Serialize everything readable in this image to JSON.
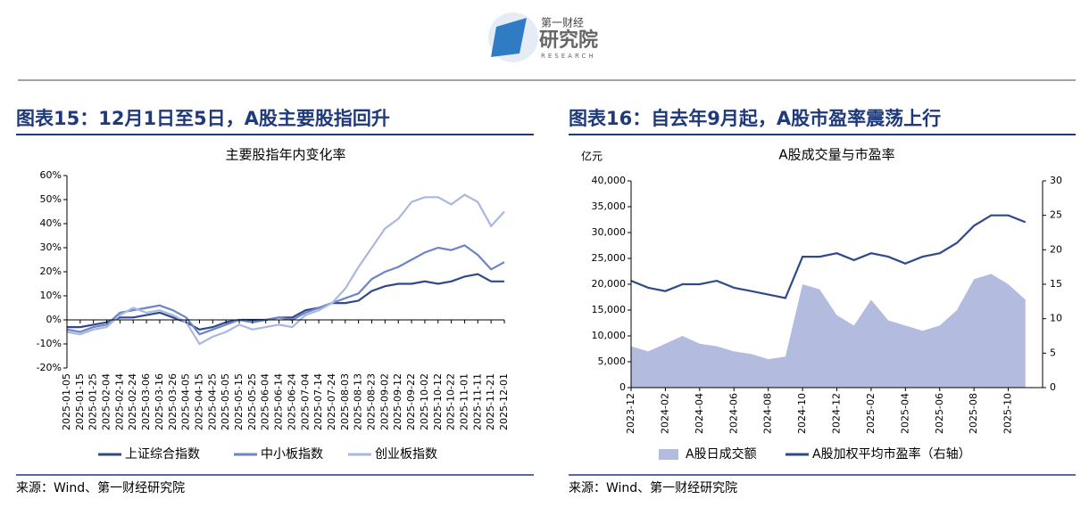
{
  "header": {
    "logo_small": "第一财经",
    "logo_large": "研究院",
    "logo_sub": "RESEARCH"
  },
  "chart_data": [
    {
      "type": "line",
      "figure_title": "图表15：12月1日至5日，A股主要股指回升",
      "title": "主要股指年内变化率",
      "source": "来源：Wind、第一财经研究院",
      "categories": [
        "2025-01-05",
        "2025-01-15",
        "2025-01-25",
        "2025-02-04",
        "2025-02-14",
        "2025-02-24",
        "2025-03-06",
        "2025-03-16",
        "2025-03-26",
        "2025-04-05",
        "2025-04-15",
        "2025-04-25",
        "2025-05-05",
        "2025-05-15",
        "2025-05-25",
        "2025-06-04",
        "2025-06-14",
        "2025-06-24",
        "2025-07-04",
        "2025-07-14",
        "2025-07-24",
        "2025-08-03",
        "2025-08-13",
        "2025-08-23",
        "2025-09-02",
        "2025-09-12",
        "2025-09-22",
        "2025-10-02",
        "2025-10-12",
        "2025-10-22",
        "2025-11-01",
        "2025-11-11",
        "2025-11-21",
        "2025-12-01"
      ],
      "series": [
        {
          "name": "上证综合指数",
          "color": "#2e4a8b",
          "values": [
            -3,
            -3,
            -2,
            -1,
            1,
            1,
            2,
            3,
            1,
            -1,
            -4,
            -3,
            -1,
            0,
            0,
            0,
            1,
            1,
            4,
            5,
            7,
            7,
            8,
            12,
            14,
            15,
            15,
            16,
            15,
            16,
            18,
            19,
            16,
            16
          ]
        },
        {
          "name": "中小板指数",
          "color": "#6d85c6",
          "values": [
            -4,
            -5,
            -3,
            -2,
            3,
            4,
            5,
            6,
            4,
            1,
            -6,
            -4,
            -2,
            0,
            -1,
            0,
            1,
            0,
            3,
            5,
            7,
            9,
            11,
            17,
            20,
            22,
            25,
            28,
            30,
            29,
            31,
            27,
            21,
            24
          ]
        },
        {
          "name": "创业板指数",
          "color": "#aab8e0",
          "values": [
            -5,
            -6,
            -4,
            -3,
            2,
            5,
            3,
            4,
            2,
            -1,
            -10,
            -7,
            -5,
            -2,
            -4,
            -3,
            -2,
            -3,
            2,
            4,
            7,
            13,
            22,
            30,
            38,
            42,
            49,
            51,
            51,
            48,
            52,
            49,
            39,
            45
          ]
        }
      ],
      "ylim": [
        -20,
        60
      ],
      "yticks": [
        {
          "value": -20,
          "label": "-20%"
        },
        {
          "value": -10,
          "label": "-10%"
        },
        {
          "value": 0,
          "label": "0%"
        },
        {
          "value": 10,
          "label": "10%"
        },
        {
          "value": 20,
          "label": "20%"
        },
        {
          "value": 30,
          "label": "30%"
        },
        {
          "value": 40,
          "label": "40%"
        },
        {
          "value": 50,
          "label": "50%"
        },
        {
          "value": 60,
          "label": "60%"
        }
      ],
      "grid": false
    },
    {
      "type": "area",
      "figure_title": "图表16：自去年9月起，A股市盈率震荡上行",
      "title": "A股成交量与市盈率",
      "source": "来源：Wind、第一财经研究院",
      "y_label": "亿元",
      "categories": [
        "2023-12",
        null,
        "2024-02",
        null,
        "2024-04",
        null,
        "2024-06",
        null,
        "2024-08",
        null,
        "2024-10",
        null,
        "2024-12",
        null,
        "2025-02",
        null,
        "2025-04",
        null,
        "2025-06",
        null,
        "2025-08",
        null,
        "2025-10",
        null
      ],
      "series": [
        {
          "name": "A股日成交额",
          "color": "#b3bbdf",
          "type": "area",
          "values": [
            8000,
            7000,
            8500,
            10000,
            8500,
            8000,
            7000,
            6500,
            5500,
            6000,
            20000,
            19000,
            14000,
            12000,
            17000,
            13000,
            12000,
            11000,
            12000,
            15000,
            21000,
            22000,
            20000,
            17000
          ]
        },
        {
          "name": "A股加权平均市盈率（右轴）",
          "color": "#2e4a8b",
          "type": "line",
          "axis": "y2",
          "values": [
            15.5,
            14.5,
            14,
            15,
            15,
            15.5,
            14.5,
            14,
            13.5,
            13,
            19,
            19,
            19.5,
            18.5,
            19.5,
            19,
            18,
            19,
            19.5,
            21,
            23.5,
            25,
            25,
            24
          ]
        }
      ],
      "ylim": [
        0,
        40000
      ],
      "yticks": [
        0,
        {
          "value": 5000,
          "label": "5,000"
        },
        {
          "value": 10000,
          "label": "10,000"
        },
        {
          "value": 15000,
          "label": "15,000"
        },
        {
          "value": 20000,
          "label": "20,000"
        },
        {
          "value": 25000,
          "label": "25,000"
        },
        {
          "value": 30000,
          "label": "30,000"
        },
        {
          "value": 35000,
          "label": "35,000"
        },
        {
          "value": 40000,
          "label": "40,000"
        }
      ],
      "y2lim": [
        0,
        30
      ],
      "y2ticks": [
        0,
        5,
        10,
        15,
        20,
        25,
        30
      ],
      "grid": false
    }
  ]
}
